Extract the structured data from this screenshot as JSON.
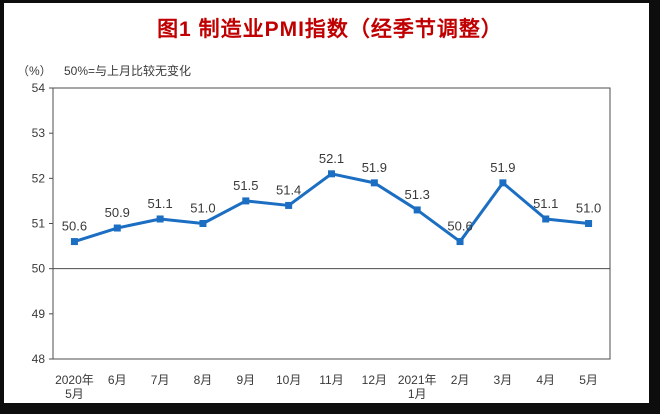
{
  "chart_data": {
    "type": "line",
    "title": "图1 制造业PMI指数（经季节调整）",
    "unit_label": "（%）",
    "note": "50%=与上月比较无变化",
    "categories": [
      "2020年\n5月",
      "6月",
      "7月",
      "8月",
      "9月",
      "10月",
      "11月",
      "12月",
      "2021年\n1月",
      "2月",
      "3月",
      "4月",
      "5月"
    ],
    "values": [
      50.6,
      50.9,
      51.1,
      51.0,
      51.5,
      51.4,
      52.1,
      51.9,
      51.3,
      50.6,
      51.9,
      51.1,
      51.0
    ],
    "ylim": [
      48,
      54
    ],
    "yticks": [
      48,
      49,
      50,
      51,
      52,
      53,
      54
    ],
    "reference_line": 50,
    "grid": "off",
    "legend": "none",
    "marker": "square",
    "data_labels": true,
    "colors": {
      "line": "#1b6ec2",
      "title": "#c00000",
      "text": "#3a3a3a",
      "axis": "#4d4d4d",
      "frame": "#0d0d0d",
      "background": "#ffffff"
    }
  }
}
